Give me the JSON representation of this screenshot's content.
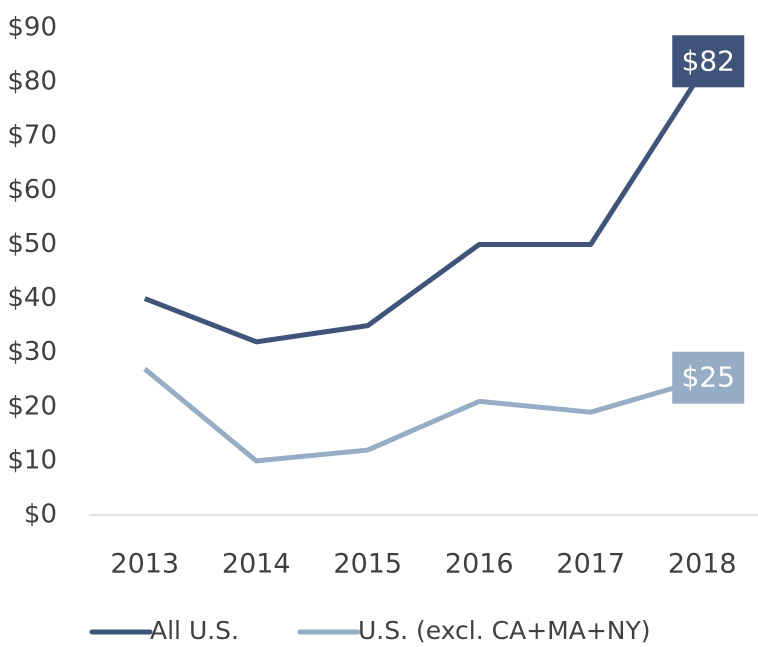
{
  "chart_data": {
    "type": "line",
    "categories": [
      "2013",
      "2014",
      "2015",
      "2016",
      "2017",
      "2018"
    ],
    "series": [
      {
        "name": "All U.S.",
        "color": "#3f5478",
        "values": [
          40,
          32,
          35,
          50,
          50,
          82
        ],
        "value_labels": [
          null,
          null,
          null,
          null,
          null,
          "$82"
        ]
      },
      {
        "name": "U.S. (excl. CA+MA+NY)",
        "color": "#97adc6",
        "values": [
          27,
          10,
          12,
          21,
          19,
          25
        ],
        "value_labels": [
          null,
          null,
          null,
          null,
          null,
          "$25"
        ]
      }
    ],
    "ylim": [
      0,
      90
    ],
    "yticks": [
      {
        "value": 0,
        "label": "$0"
      },
      {
        "value": 10,
        "label": "$10"
      },
      {
        "value": 20,
        "label": "$20"
      },
      {
        "value": 30,
        "label": "$30"
      },
      {
        "value": 40,
        "label": "$40"
      },
      {
        "value": 50,
        "label": "$50"
      },
      {
        "value": 60,
        "label": "$60"
      },
      {
        "value": 70,
        "label": "$70"
      },
      {
        "value": 80,
        "label": "$80"
      },
      {
        "value": 90,
        "label": "$90"
      }
    ],
    "grid": false,
    "legend": "bottom"
  }
}
